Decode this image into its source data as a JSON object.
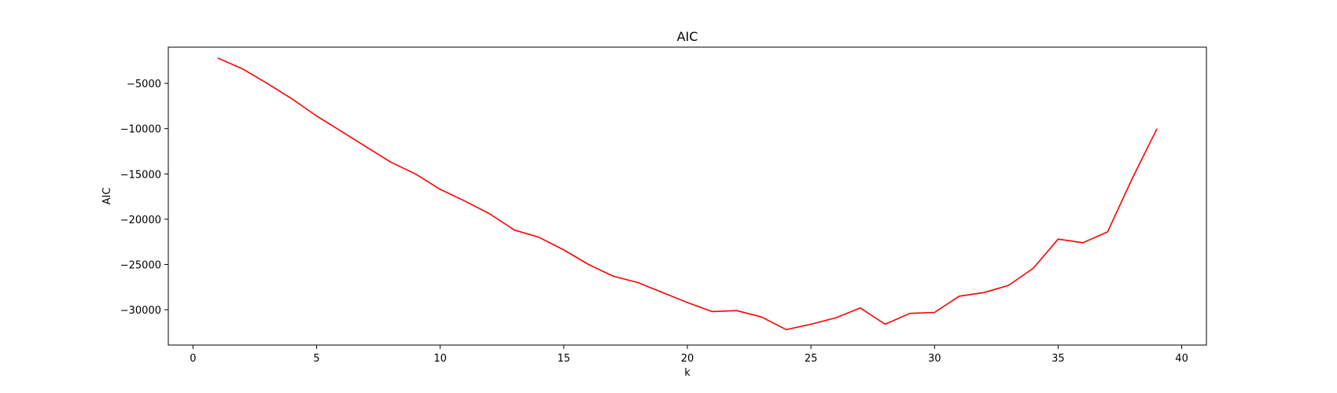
{
  "chart_data": {
    "type": "line",
    "title": "AIC",
    "xlabel": "k",
    "ylabel": "AIC",
    "xlim": [
      -1,
      41
    ],
    "ylim": [
      -33900,
      -1000
    ],
    "xticks": [
      0,
      5,
      10,
      15,
      20,
      25,
      30,
      35,
      40
    ],
    "xtick_labels": [
      "0",
      "5",
      "10",
      "15",
      "20",
      "25",
      "30",
      "35",
      "40"
    ],
    "yticks": [
      -30000,
      -25000,
      -20000,
      -15000,
      -10000,
      -5000
    ],
    "ytick_labels": [
      "−30000",
      "−25000",
      "−20000",
      "−15000",
      "−10000",
      "−5000"
    ],
    "grid": false,
    "colors": {
      "line": "#ff0000",
      "axes": "#000000"
    },
    "series": [
      {
        "x": [
          1,
          2,
          3,
          4,
          5,
          6,
          7,
          8,
          9,
          10,
          11,
          12,
          13,
          14,
          15,
          16,
          17,
          18,
          19,
          20,
          21,
          22,
          23,
          24,
          25,
          26,
          27,
          28,
          29,
          30,
          31,
          32,
          33,
          34,
          35,
          36,
          37,
          38,
          39
        ],
        "values": [
          -2200,
          -3400,
          -5000,
          -6700,
          -8600,
          -10300,
          -12000,
          -13700,
          -15000,
          -16700,
          -18000,
          -19400,
          -21200,
          -22000,
          -23400,
          -25000,
          -26300,
          -27000,
          -28100,
          -29200,
          -30200,
          -30100,
          -30800,
          -32200,
          -31600,
          -30900,
          -29800,
          -31600,
          -30400,
          -30300,
          -28500,
          -28100,
          -27300,
          -25400,
          -22200,
          -22600,
          -21400,
          -15500,
          -10000
        ]
      }
    ]
  }
}
